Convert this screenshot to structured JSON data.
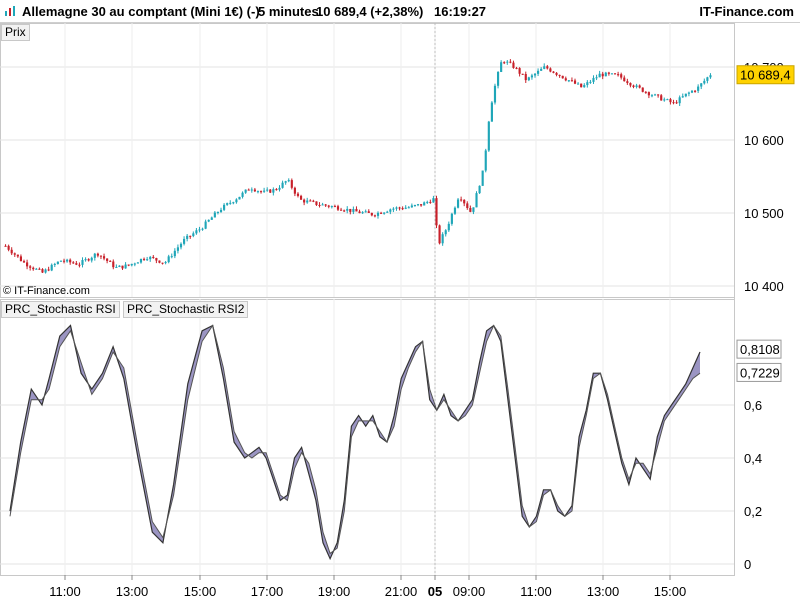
{
  "header": {
    "title": "Allemagne 30 au comptant (Mini 1€) (-)",
    "timeframe": "5 minutes",
    "price_change": "10 689,4 (+2,38%)",
    "time": "16:19:27",
    "brand": "IT-Finance.com"
  },
  "price_panel": {
    "label": "Prix",
    "copyright": "© IT-Finance.com"
  },
  "indicator_panel": {
    "labels": [
      "PRC_Stochastic RSI",
      "PRC_Stochastic RSI2"
    ]
  },
  "colors": {
    "up": "#1fa6b8",
    "down": "#c8202a",
    "current_tag": "#ffd200",
    "stoch_fill": "#8a82b8"
  },
  "chart_data": [
    {
      "type": "candlestick",
      "ylim": [
        10400,
        10740
      ],
      "y_ticks": [
        "10 400",
        "10 500",
        "10 600",
        "10 700"
      ],
      "y_tick_values": [
        10400,
        10500,
        10600,
        10700
      ],
      "current_price": 10689.4,
      "current_label": "10 689,4",
      "price_path": [
        [
          0,
          10455
        ],
        [
          6,
          10432
        ],
        [
          12,
          10418
        ],
        [
          18,
          10435
        ],
        [
          24,
          10430
        ],
        [
          30,
          10445
        ],
        [
          36,
          10425
        ],
        [
          40,
          10428
        ],
        [
          46,
          10440
        ],
        [
          52,
          10432
        ],
        [
          58,
          10462
        ],
        [
          64,
          10480
        ],
        [
          70,
          10505
        ],
        [
          76,
          10522
        ],
        [
          80,
          10535
        ],
        [
          84,
          10528
        ],
        [
          88,
          10532
        ],
        [
          92,
          10545
        ],
        [
          96,
          10518
        ],
        [
          102,
          10512
        ],
        [
          108,
          10508
        ],
        [
          114,
          10502
        ],
        [
          120,
          10498
        ],
        [
          126,
          10506
        ],
        [
          132,
          10508
        ],
        [
          136,
          10512
        ],
        [
          140,
          10520
        ],
        [
          141,
          10455
        ],
        [
          144,
          10480
        ],
        [
          148,
          10525
        ],
        [
          152,
          10500
        ],
        [
          156,
          10560
        ],
        [
          158,
          10640
        ],
        [
          160,
          10680
        ],
        [
          162,
          10710
        ],
        [
          166,
          10700
        ],
        [
          170,
          10682
        ],
        [
          176,
          10700
        ],
        [
          182,
          10686
        ],
        [
          188,
          10672
        ],
        [
          194,
          10690
        ],
        [
          200,
          10688
        ],
        [
          206,
          10672
        ],
        [
          212,
          10660
        ],
        [
          218,
          10650
        ],
        [
          222,
          10662
        ],
        [
          226,
          10672
        ],
        [
          230,
          10690
        ]
      ],
      "candle_count": 230
    },
    {
      "type": "line",
      "ylim": [
        -0.02,
        0.93
      ],
      "y_ticks": [
        "0",
        "0,2",
        "0,4",
        "0,6"
      ],
      "y_tick_values": [
        0,
        0.2,
        0.4,
        0.6
      ],
      "current_labels": [
        "0,8108",
        "0,7229"
      ],
      "current_values": [
        0.8108,
        0.7229
      ],
      "series": [
        {
          "values": [
            [
              0,
              0.2
            ],
            [
              3,
              0.46
            ],
            [
              6,
              0.66
            ],
            [
              9,
              0.6
            ],
            [
              11,
              0.7
            ],
            [
              14,
              0.86
            ],
            [
              17,
              0.9
            ],
            [
              20,
              0.72
            ],
            [
              23,
              0.66
            ],
            [
              26,
              0.72
            ],
            [
              29,
              0.82
            ],
            [
              32,
              0.7
            ],
            [
              36,
              0.4
            ],
            [
              40,
              0.12
            ],
            [
              43,
              0.08
            ],
            [
              46,
              0.3
            ],
            [
              50,
              0.68
            ],
            [
              54,
              0.88
            ],
            [
              57,
              0.9
            ],
            [
              60,
              0.7
            ],
            [
              63,
              0.46
            ],
            [
              66,
              0.4
            ],
            [
              68,
              0.42
            ],
            [
              70,
              0.44
            ],
            [
              72,
              0.4
            ],
            [
              74,
              0.32
            ],
            [
              76,
              0.24
            ],
            [
              78,
              0.26
            ],
            [
              80,
              0.4
            ],
            [
              82,
              0.44
            ],
            [
              84,
              0.34
            ],
            [
              86,
              0.24
            ],
            [
              88,
              0.08
            ],
            [
              90,
              0.02
            ],
            [
              92,
              0.08
            ],
            [
              94,
              0.24
            ],
            [
              96,
              0.52
            ],
            [
              98,
              0.56
            ],
            [
              100,
              0.52
            ],
            [
              102,
              0.56
            ],
            [
              104,
              0.48
            ],
            [
              106,
              0.46
            ],
            [
              108,
              0.56
            ],
            [
              110,
              0.7
            ],
            [
              112,
              0.76
            ],
            [
              114,
              0.82
            ],
            [
              116,
              0.84
            ],
            [
              118,
              0.62
            ],
            [
              120,
              0.58
            ],
            [
              122,
              0.64
            ],
            [
              124,
              0.56
            ],
            [
              126,
              0.54
            ],
            [
              128,
              0.58
            ],
            [
              130,
              0.62
            ],
            [
              132,
              0.76
            ],
            [
              134,
              0.88
            ],
            [
              136,
              0.9
            ],
            [
              138,
              0.84
            ],
            [
              140,
              0.62
            ],
            [
              142,
              0.4
            ],
            [
              144,
              0.18
            ],
            [
              146,
              0.14
            ],
            [
              148,
              0.18
            ],
            [
              150,
              0.28
            ],
            [
              152,
              0.28
            ],
            [
              154,
              0.2
            ],
            [
              156,
              0.18
            ],
            [
              158,
              0.22
            ],
            [
              160,
              0.48
            ],
            [
              162,
              0.58
            ],
            [
              164,
              0.72
            ],
            [
              166,
              0.72
            ],
            [
              168,
              0.62
            ],
            [
              170,
              0.5
            ],
            [
              172,
              0.38
            ],
            [
              174,
              0.3
            ],
            [
              176,
              0.4
            ],
            [
              178,
              0.36
            ],
            [
              180,
              0.32
            ],
            [
              182,
              0.48
            ],
            [
              184,
              0.56
            ],
            [
              186,
              0.6
            ],
            [
              188,
              0.64
            ],
            [
              190,
              0.68
            ],
            [
              192,
              0.74
            ],
            [
              194,
              0.8
            ]
          ]
        },
        {
          "values": [
            [
              0,
              0.18
            ],
            [
              3,
              0.42
            ],
            [
              6,
              0.62
            ],
            [
              9,
              0.62
            ],
            [
              11,
              0.66
            ],
            [
              14,
              0.82
            ],
            [
              17,
              0.88
            ],
            [
              20,
              0.76
            ],
            [
              23,
              0.64
            ],
            [
              26,
              0.7
            ],
            [
              29,
              0.8
            ],
            [
              32,
              0.74
            ],
            [
              36,
              0.44
            ],
            [
              40,
              0.16
            ],
            [
              43,
              0.1
            ],
            [
              46,
              0.26
            ],
            [
              50,
              0.62
            ],
            [
              54,
              0.84
            ],
            [
              57,
              0.9
            ],
            [
              60,
              0.74
            ],
            [
              63,
              0.5
            ],
            [
              66,
              0.42
            ],
            [
              68,
              0.4
            ],
            [
              70,
              0.42
            ],
            [
              72,
              0.42
            ],
            [
              74,
              0.34
            ],
            [
              76,
              0.26
            ],
            [
              78,
              0.24
            ],
            [
              80,
              0.36
            ],
            [
              82,
              0.42
            ],
            [
              84,
              0.38
            ],
            [
              86,
              0.28
            ],
            [
              88,
              0.12
            ],
            [
              90,
              0.04
            ],
            [
              92,
              0.06
            ],
            [
              94,
              0.2
            ],
            [
              96,
              0.48
            ],
            [
              98,
              0.54
            ],
            [
              100,
              0.54
            ],
            [
              102,
              0.54
            ],
            [
              104,
              0.5
            ],
            [
              106,
              0.46
            ],
            [
              108,
              0.52
            ],
            [
              110,
              0.66
            ],
            [
              112,
              0.74
            ],
            [
              114,
              0.8
            ],
            [
              116,
              0.84
            ],
            [
              118,
              0.66
            ],
            [
              120,
              0.58
            ],
            [
              122,
              0.62
            ],
            [
              124,
              0.58
            ],
            [
              126,
              0.54
            ],
            [
              128,
              0.56
            ],
            [
              130,
              0.6
            ],
            [
              132,
              0.72
            ],
            [
              134,
              0.84
            ],
            [
              136,
              0.9
            ],
            [
              138,
              0.86
            ],
            [
              140,
              0.66
            ],
            [
              142,
              0.44
            ],
            [
              144,
              0.22
            ],
            [
              146,
              0.14
            ],
            [
              148,
              0.16
            ],
            [
              150,
              0.26
            ],
            [
              152,
              0.28
            ],
            [
              154,
              0.22
            ],
            [
              156,
              0.18
            ],
            [
              158,
              0.2
            ],
            [
              160,
              0.44
            ],
            [
              162,
              0.56
            ],
            [
              164,
              0.7
            ],
            [
              166,
              0.72
            ],
            [
              168,
              0.64
            ],
            [
              170,
              0.52
            ],
            [
              172,
              0.4
            ],
            [
              174,
              0.32
            ],
            [
              176,
              0.38
            ],
            [
              178,
              0.38
            ],
            [
              180,
              0.34
            ],
            [
              182,
              0.44
            ],
            [
              184,
              0.54
            ],
            [
              186,
              0.58
            ],
            [
              188,
              0.62
            ],
            [
              190,
              0.66
            ],
            [
              192,
              0.7
            ],
            [
              194,
              0.72
            ]
          ]
        }
      ]
    }
  ],
  "x_axis": {
    "labels": [
      "11:00",
      "13:00",
      "15:00",
      "17:00",
      "19:00",
      "21:00",
      "05",
      "09:00",
      "11:00",
      "13:00",
      "15:00"
    ],
    "positions": [
      18,
      36,
      54,
      72,
      90,
      108,
      117,
      126,
      144,
      162,
      180
    ]
  }
}
